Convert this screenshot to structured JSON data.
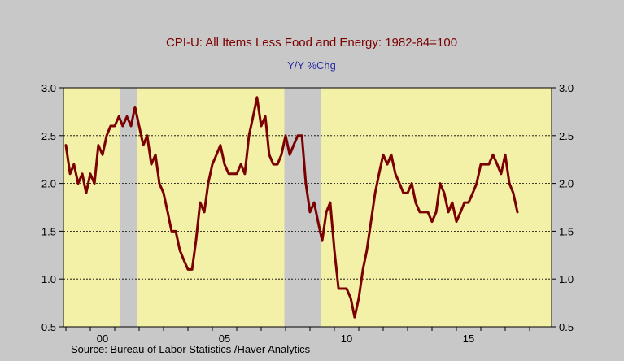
{
  "chart_data": {
    "type": "line",
    "title": "CPI-U: All Items Less Food and Energy: 1982-84=100",
    "subtitle": "Y/Y %Chg",
    "source": "Source:   Bureau of Labor Statistics /Haver Analytics",
    "ylim": [
      0.5,
      3.0
    ],
    "y_ticks": [
      "0.5",
      "1.0",
      "1.5",
      "2.0",
      "2.5",
      "3.0"
    ],
    "x_ticks": [
      {
        "label": "00",
        "x": 2000.0
      },
      {
        "label": "05",
        "x": 2005.0
      },
      {
        "label": "10",
        "x": 2010.0
      },
      {
        "label": "15",
        "x": 2015.0
      }
    ],
    "xlim": [
      1998.9,
      2018.9
    ],
    "grid": "horizontal dotted",
    "recessions": [
      {
        "start": 2001.2,
        "end": 2001.9
      },
      {
        "start": 2007.95,
        "end": 2009.45
      }
    ],
    "colors": {
      "plot_bg": "#f3f0a8",
      "line": "#7b0000",
      "recession": "#c8c8c8",
      "title": "#7b0000",
      "subtitle": "#2a2aa0",
      "page_bg": "#c8c8c8"
    },
    "series": [
      {
        "values": [
          [
            1999.0,
            2.4
          ],
          [
            1999.17,
            2.1
          ],
          [
            1999.33,
            2.2
          ],
          [
            1999.5,
            2.0
          ],
          [
            1999.67,
            2.1
          ],
          [
            1999.83,
            1.9
          ],
          [
            2000.0,
            2.1
          ],
          [
            2000.17,
            2.0
          ],
          [
            2000.33,
            2.4
          ],
          [
            2000.5,
            2.3
          ],
          [
            2000.67,
            2.5
          ],
          [
            2000.83,
            2.6
          ],
          [
            2001.0,
            2.6
          ],
          [
            2001.17,
            2.7
          ],
          [
            2001.33,
            2.6
          ],
          [
            2001.5,
            2.7
          ],
          [
            2001.67,
            2.6
          ],
          [
            2001.83,
            2.8
          ],
          [
            2002.0,
            2.6
          ],
          [
            2002.17,
            2.4
          ],
          [
            2002.33,
            2.5
          ],
          [
            2002.5,
            2.2
          ],
          [
            2002.67,
            2.3
          ],
          [
            2002.83,
            2.0
          ],
          [
            2003.0,
            1.9
          ],
          [
            2003.17,
            1.7
          ],
          [
            2003.33,
            1.5
          ],
          [
            2003.5,
            1.5
          ],
          [
            2003.67,
            1.3
          ],
          [
            2003.83,
            1.2
          ],
          [
            2004.0,
            1.1
          ],
          [
            2004.17,
            1.1
          ],
          [
            2004.33,
            1.4
          ],
          [
            2004.5,
            1.8
          ],
          [
            2004.67,
            1.7
          ],
          [
            2004.83,
            2.0
          ],
          [
            2005.0,
            2.2
          ],
          [
            2005.17,
            2.3
          ],
          [
            2005.33,
            2.4
          ],
          [
            2005.5,
            2.2
          ],
          [
            2005.67,
            2.1
          ],
          [
            2005.83,
            2.1
          ],
          [
            2006.0,
            2.1
          ],
          [
            2006.17,
            2.2
          ],
          [
            2006.33,
            2.1
          ],
          [
            2006.5,
            2.5
          ],
          [
            2006.67,
            2.7
          ],
          [
            2006.83,
            2.9
          ],
          [
            2007.0,
            2.6
          ],
          [
            2007.17,
            2.7
          ],
          [
            2007.33,
            2.3
          ],
          [
            2007.5,
            2.2
          ],
          [
            2007.67,
            2.2
          ],
          [
            2007.83,
            2.3
          ],
          [
            2008.0,
            2.5
          ],
          [
            2008.17,
            2.3
          ],
          [
            2008.33,
            2.4
          ],
          [
            2008.5,
            2.5
          ],
          [
            2008.67,
            2.5
          ],
          [
            2008.83,
            2.0
          ],
          [
            2009.0,
            1.7
          ],
          [
            2009.17,
            1.8
          ],
          [
            2009.33,
            1.6
          ],
          [
            2009.5,
            1.4
          ],
          [
            2009.67,
            1.7
          ],
          [
            2009.83,
            1.8
          ],
          [
            2010.0,
            1.3
          ],
          [
            2010.17,
            0.9
          ],
          [
            2010.33,
            0.9
          ],
          [
            2010.5,
            0.9
          ],
          [
            2010.67,
            0.8
          ],
          [
            2010.83,
            0.6
          ],
          [
            2011.0,
            0.8
          ],
          [
            2011.17,
            1.1
          ],
          [
            2011.33,
            1.3
          ],
          [
            2011.5,
            1.6
          ],
          [
            2011.67,
            1.9
          ],
          [
            2011.83,
            2.1
          ],
          [
            2012.0,
            2.3
          ],
          [
            2012.17,
            2.2
          ],
          [
            2012.33,
            2.3
          ],
          [
            2012.5,
            2.1
          ],
          [
            2012.67,
            2.0
          ],
          [
            2012.83,
            1.9
          ],
          [
            2013.0,
            1.9
          ],
          [
            2013.17,
            2.0
          ],
          [
            2013.33,
            1.8
          ],
          [
            2013.5,
            1.7
          ],
          [
            2013.67,
            1.7
          ],
          [
            2013.83,
            1.7
          ],
          [
            2014.0,
            1.6
          ],
          [
            2014.17,
            1.7
          ],
          [
            2014.33,
            2.0
          ],
          [
            2014.5,
            1.9
          ],
          [
            2014.67,
            1.7
          ],
          [
            2014.83,
            1.8
          ],
          [
            2015.0,
            1.6
          ],
          [
            2015.17,
            1.7
          ],
          [
            2015.33,
            1.8
          ],
          [
            2015.5,
            1.8
          ],
          [
            2015.67,
            1.9
          ],
          [
            2015.83,
            2.0
          ],
          [
            2016.0,
            2.2
          ],
          [
            2016.17,
            2.2
          ],
          [
            2016.33,
            2.2
          ],
          [
            2016.5,
            2.3
          ],
          [
            2016.67,
            2.2
          ],
          [
            2016.83,
            2.1
          ],
          [
            2017.0,
            2.3
          ],
          [
            2017.17,
            2.0
          ],
          [
            2017.33,
            1.9
          ],
          [
            2017.5,
            1.7
          ]
        ]
      }
    ]
  }
}
